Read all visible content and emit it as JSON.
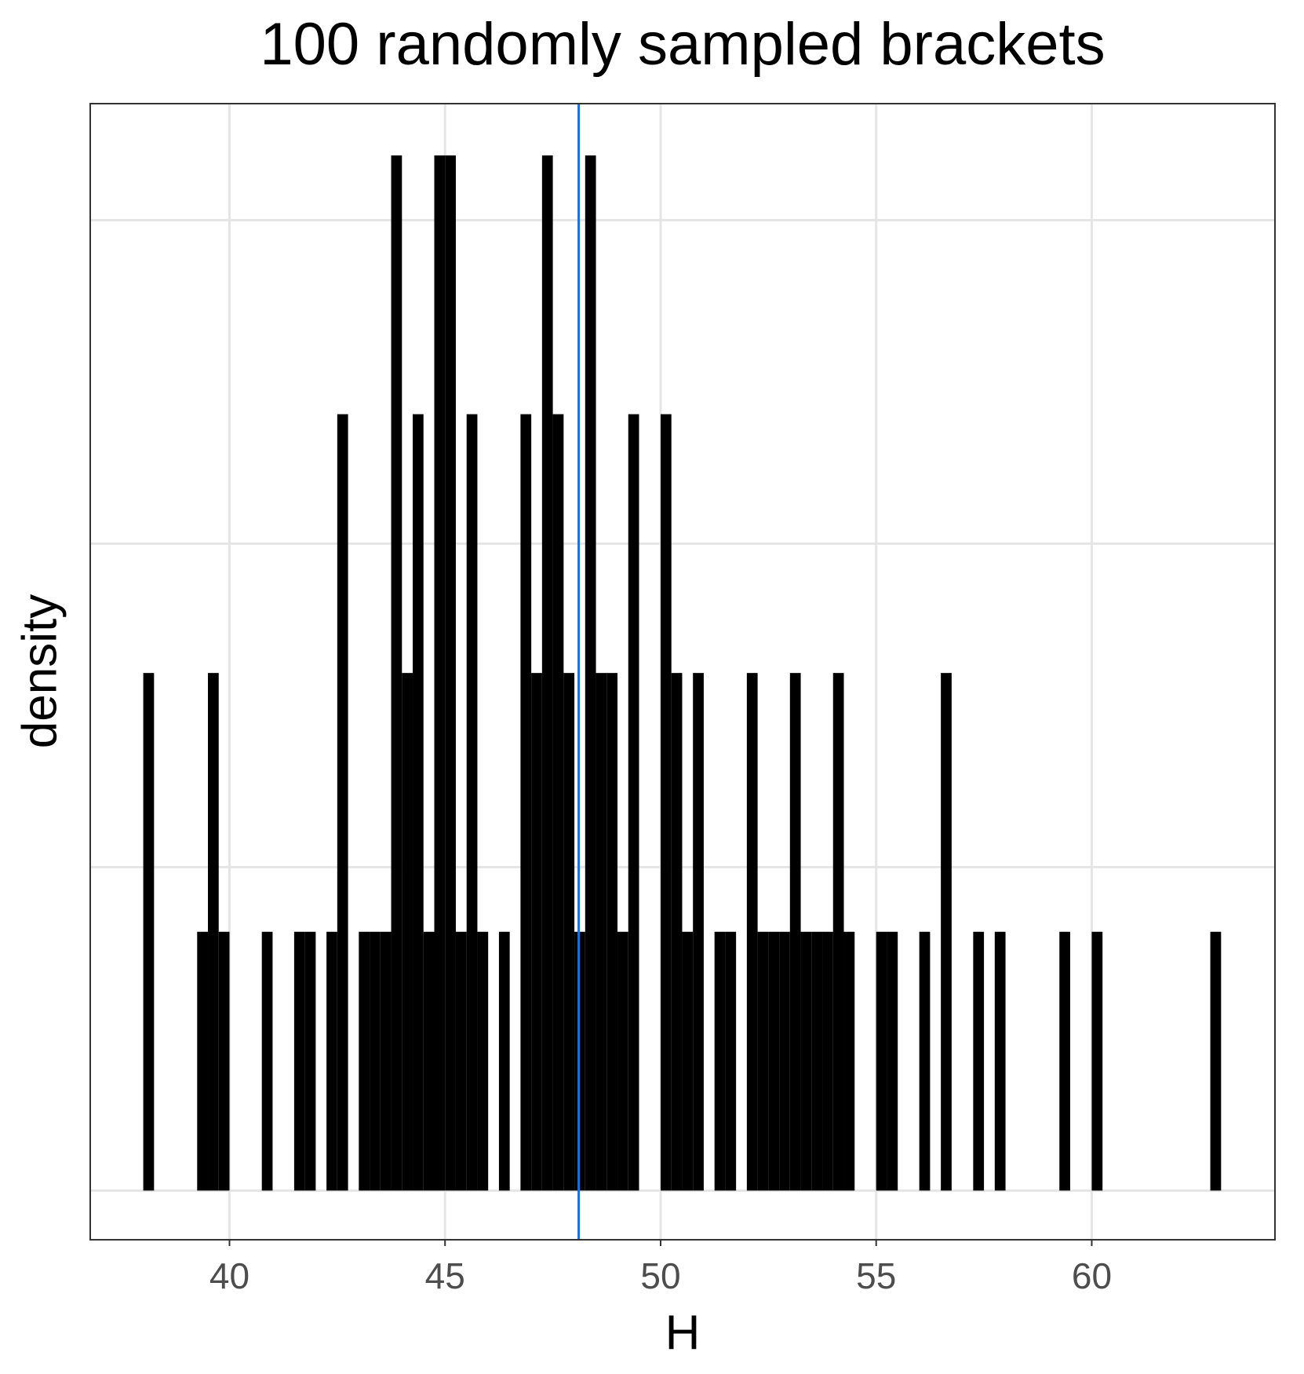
{
  "chart_data": {
    "type": "histogram",
    "title": "100 randomly sampled brackets",
    "x_label": "H",
    "y_label": "density",
    "bins": [
      38,
      38.25,
      38.5,
      38.75,
      39,
      39.25,
      39.5,
      39.75,
      40,
      40.25,
      40.5,
      40.75,
      41,
      41.25,
      41.5,
      41.75,
      42,
      42.25,
      42.5,
      42.75,
      43,
      43.25,
      43.5,
      43.75,
      44,
      44.25,
      44.5,
      44.75,
      45,
      45.25,
      45.5,
      45.75,
      46,
      46.25,
      46.5,
      46.75,
      47,
      47.25,
      47.5,
      47.75,
      48,
      48.25,
      48.5,
      48.75,
      49,
      49.25,
      49.5,
      49.75,
      50,
      50.25,
      50.5,
      50.75,
      51,
      51.25,
      51.5,
      51.75,
      52,
      52.25,
      52.5,
      52.75,
      53,
      53.25,
      53.5,
      53.75,
      54,
      54.25,
      54.5,
      54.75,
      55,
      55.25,
      55.5,
      55.75,
      56,
      56.25,
      56.5,
      56.75,
      57,
      57.25,
      57.5,
      57.75,
      58,
      58.25,
      58.5,
      58.75,
      59,
      59.25,
      59.5,
      59.75,
      60,
      60.25,
      60.5,
      60.75,
      61,
      61.25,
      61.5,
      61.75,
      62,
      62.25,
      62.5,
      62.75,
      63
    ],
    "values": [
      0.08,
      0,
      0,
      0,
      0,
      0.04,
      0.08,
      0.04,
      0,
      0,
      0,
      0.04,
      0,
      0,
      0.04,
      0.04,
      0,
      0.04,
      0.12,
      0,
      0.04,
      0.04,
      0.04,
      0.16,
      0.08,
      0.12,
      0.04,
      0.16,
      0.16,
      0.04,
      0.12,
      0.04,
      0,
      0.04,
      0,
      0.12,
      0.08,
      0.16,
      0.12,
      0.08,
      0.04,
      0.16,
      0.08,
      0.08,
      0.04,
      0.12,
      0,
      0,
      0.12,
      0.08,
      0.04,
      0.08,
      0,
      0.04,
      0.04,
      0,
      0.08,
      0.04,
      0.04,
      0.04,
      0.08,
      0.04,
      0.04,
      0.04,
      0.08,
      0.04,
      0,
      0,
      0.04,
      0.04,
      0,
      0,
      0.04,
      0,
      0.08,
      0,
      0,
      0.04,
      0,
      0.04,
      0,
      0,
      0,
      0,
      0,
      0.04,
      0,
      0,
      0.04,
      0,
      0,
      0,
      0,
      0,
      0,
      0,
      0,
      0,
      0,
      0.04
    ],
    "color": "#000000",
    "vline": {
      "value": 48.1,
      "color": "#1f6fd6"
    },
    "xlim": [
      36.77,
      64.25
    ],
    "xticks": [
      40,
      45,
      50,
      55,
      60
    ],
    "ylim": [
      -0.0076,
      0.168
    ],
    "yticks": [
      0,
      0.05,
      0.1,
      0.15
    ],
    "grid": true
  }
}
